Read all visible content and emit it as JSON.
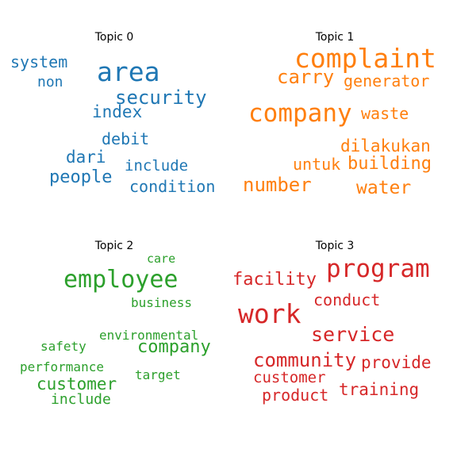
{
  "topics": [
    {
      "title": "Topic 0",
      "color": "#1f77b4",
      "words": [
        "system",
        "non",
        "area",
        "security",
        "index",
        "debit",
        "dari",
        "people",
        "include",
        "condition"
      ]
    },
    {
      "title": "Topic 1",
      "color": "#ff7f0e",
      "words": [
        "complaint",
        "carry",
        "generator",
        "company",
        "waste",
        "dilakukan",
        "untuk",
        "building",
        "number",
        "water"
      ]
    },
    {
      "title": "Topic 2",
      "color": "#2ca02c",
      "words": [
        "care",
        "employee",
        "business",
        "environmental",
        "safety",
        "company",
        "performance",
        "target",
        "customer",
        "include"
      ]
    },
    {
      "title": "Topic 3",
      "color": "#d62728",
      "words": [
        "program",
        "facility",
        "conduct",
        "work",
        "service",
        "community",
        "provide",
        "customer",
        "training",
        "product"
      ]
    }
  ]
}
